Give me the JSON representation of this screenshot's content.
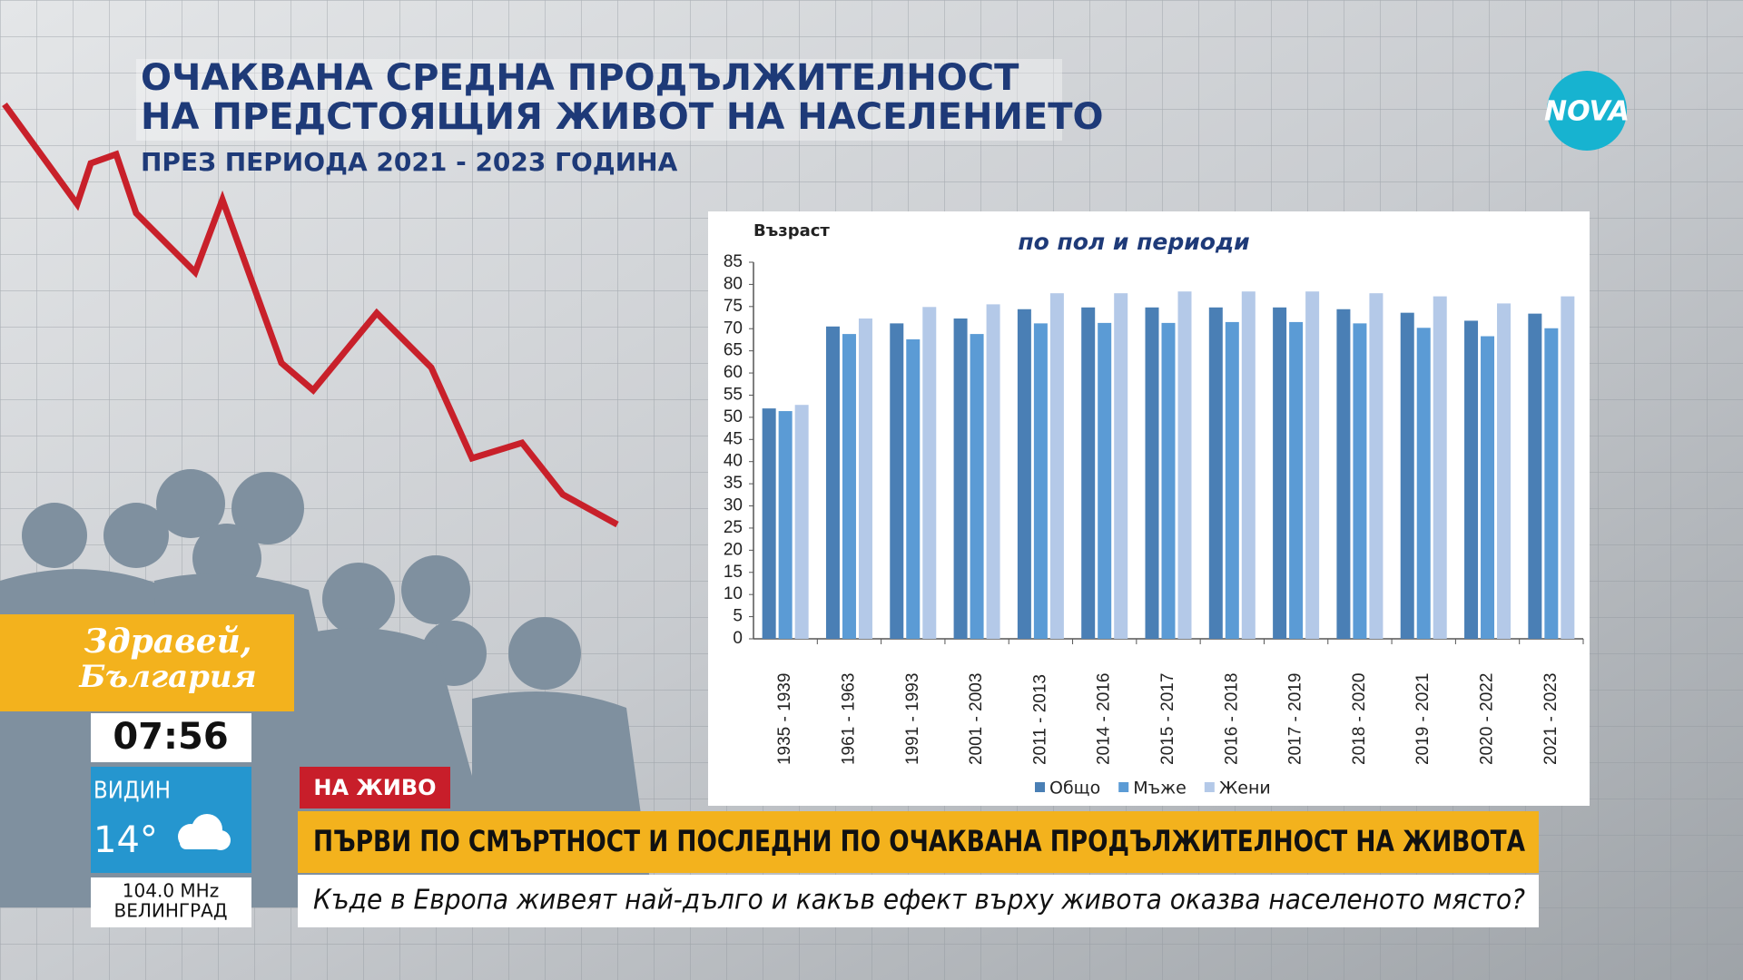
{
  "header": {
    "title_line1": "ОЧАКВАНА СРЕДНА ПРОДЪЛЖИТЕЛНОСТ",
    "title_line2": "НА ПРЕДСТОЯЩИЯ ЖИВОТ НА НАСЕЛЕНИЕТО",
    "subtitle": "ПРЕЗ ПЕРИОДА 2021 - 2023 ГОДИНА"
  },
  "logo": "NOVA",
  "chart_data": {
    "type": "bar",
    "title": "по пол и периоди",
    "y_label": "Възраст",
    "categories": [
      "1935 - 1939",
      "1961 - 1963",
      "1991 - 1993",
      "2001 - 2003",
      "2011 - 2013",
      "2014 - 2016",
      "2015 - 2017",
      "2016 - 2018",
      "2017 - 2019",
      "2018 - 2020",
      "2019 - 2021",
      "2020 - 2022",
      "2021 - 2023"
    ],
    "series": [
      {
        "name": "Общо",
        "color": "#4a7fb5",
        "values": [
          52.0,
          70.5,
          71.2,
          72.3,
          74.4,
          74.8,
          74.8,
          74.8,
          74.8,
          74.4,
          73.6,
          71.8,
          73.4
        ]
      },
      {
        "name": "Мъже",
        "color": "#5b9bd5",
        "values": [
          51.4,
          68.8,
          67.6,
          68.8,
          71.2,
          71.3,
          71.3,
          71.5,
          71.5,
          71.2,
          70.2,
          68.3,
          70.1
        ]
      },
      {
        "name": "Жени",
        "color": "#b4c9e8",
        "values": [
          52.8,
          72.3,
          74.9,
          75.5,
          78.0,
          78.0,
          78.4,
          78.4,
          78.4,
          78.0,
          77.3,
          75.7,
          77.3
        ]
      }
    ],
    "ylim": [
      0,
      85
    ],
    "yticks": [
      0,
      5,
      10,
      15,
      20,
      25,
      30,
      35,
      40,
      45,
      50,
      55,
      60,
      65,
      70,
      75,
      80,
      85
    ],
    "grid": false,
    "legend": "bottom"
  },
  "show": {
    "line1": "Здравей,",
    "line2": "България"
  },
  "clock": "07:56",
  "weather": {
    "city": "ВИДИН",
    "temp": "14°"
  },
  "radio": {
    "freq": "104.0 MHz",
    "city": "ВЕЛИНГРАД"
  },
  "live": "НА ЖИВО",
  "headline": "ПЪРВИ ПО СМЪРТНОСТ И ПОСЛЕДНИ ПО ОЧАКВАНА ПРОДЪЛЖИТЕЛНОСТ НА ЖИВОТА",
  "subheadline": "Къде в Европа живеят най-дълго и какъв ефект върху живота оказва населеното място?"
}
